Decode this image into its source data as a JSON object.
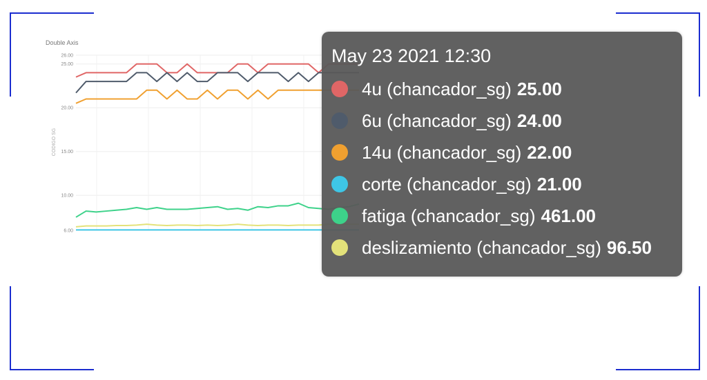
{
  "colors": {
    "4u": "#e06666",
    "6u": "#4f5b6b",
    "14u": "#f0a030",
    "corte": "#3ec6e6",
    "fatiga": "#3dd28a",
    "deslizamiento": "#e3e27a",
    "frame": "#1a2ccf"
  },
  "chart_data": {
    "type": "line",
    "title": "Double Axis",
    "ylabel": "CODIGO SG",
    "xlabel": "",
    "ylim": [
      6,
      26
    ],
    "yticks": [
      "6.00",
      "10.00",
      "15.00",
      "20.00",
      "25.00",
      "26.00"
    ],
    "grid": true,
    "x": [
      0,
      1,
      2,
      3,
      4,
      5,
      6,
      7,
      8,
      9,
      10,
      11,
      12,
      13,
      14,
      15,
      16,
      17,
      18,
      19,
      20,
      21,
      22,
      23,
      24,
      25,
      26,
      27,
      28
    ],
    "series": [
      {
        "key": "4u",
        "color": "#e06666",
        "values": [
          23.5,
          24,
          24,
          24,
          24,
          24,
          25,
          25,
          25,
          24,
          24,
          25,
          24,
          24,
          24,
          24,
          25,
          25,
          24,
          25,
          25,
          25,
          25,
          25,
          24,
          25,
          25,
          25,
          25
        ]
      },
      {
        "key": "6u",
        "color": "#4f5b6b",
        "values": [
          21.7,
          23,
          23,
          23,
          23,
          23,
          24,
          24,
          23,
          24,
          23,
          24,
          23,
          23,
          24,
          24,
          24,
          23,
          24,
          24,
          24,
          23,
          24,
          23,
          24,
          24,
          24,
          24,
          24
        ]
      },
      {
        "key": "14u",
        "color": "#f0a030",
        "values": [
          20.5,
          21,
          21,
          21,
          21,
          21,
          21,
          22,
          22,
          21,
          22,
          21,
          21,
          22,
          21,
          22,
          22,
          21,
          22,
          21,
          22,
          22,
          22,
          22,
          22,
          22,
          22,
          22,
          22
        ]
      },
      {
        "key": "deslizamiento",
        "color": "#e3e27a",
        "values": [
          6.4,
          6.5,
          6.5,
          6.5,
          6.55,
          6.55,
          6.6,
          6.7,
          6.6,
          6.55,
          6.6,
          6.6,
          6.55,
          6.6,
          6.55,
          6.6,
          6.7,
          6.6,
          6.55,
          6.6,
          6.6,
          6.55,
          6.6,
          6.6,
          6.6,
          6.7,
          6.7,
          6.7,
          6.7
        ]
      },
      {
        "key": "fatiga",
        "color": "#3dd28a",
        "values": [
          7.5,
          8.2,
          8.1,
          8.2,
          8.3,
          8.4,
          8.6,
          8.4,
          8.6,
          8.4,
          8.4,
          8.4,
          8.5,
          8.6,
          8.7,
          8.4,
          8.5,
          8.3,
          8.7,
          8.6,
          8.8,
          8.8,
          9.1,
          8.6,
          8.5,
          8.4,
          8.6,
          8.7,
          9.0
        ]
      },
      {
        "key": "corte",
        "color": "#3ec6e6",
        "values": [
          6.05,
          6.05,
          6.05,
          6.05,
          6.05,
          6.05,
          6.05,
          6.05,
          6.05,
          6.05,
          6.05,
          6.05,
          6.05,
          6.05,
          6.05,
          6.05,
          6.05,
          6.05,
          6.05,
          6.05,
          6.05,
          6.05,
          6.05,
          6.05,
          6.05,
          6.05,
          6.05,
          6.05,
          6.05
        ]
      }
    ]
  },
  "tooltip": {
    "title": "May 23 2021 12:30",
    "rows": [
      {
        "key": "4u",
        "label": "4u (chancador_sg)",
        "value": "25.00",
        "color": "#e06666"
      },
      {
        "key": "6u",
        "label": "6u (chancador_sg)",
        "value": "24.00",
        "color": "#4f5b6b"
      },
      {
        "key": "14u",
        "label": "14u (chancador_sg)",
        "value": "22.00",
        "color": "#f0a030"
      },
      {
        "key": "corte",
        "label": "corte (chancador_sg)",
        "value": "21.00",
        "color": "#3ec6e6"
      },
      {
        "key": "fatiga",
        "label": "fatiga (chancador_sg)",
        "value": "461.00",
        "color": "#3dd28a"
      },
      {
        "key": "deslizamiento",
        "label": "deslizamiento (chancador_sg)",
        "value": "96.50",
        "color": "#e3e27a"
      }
    ]
  }
}
